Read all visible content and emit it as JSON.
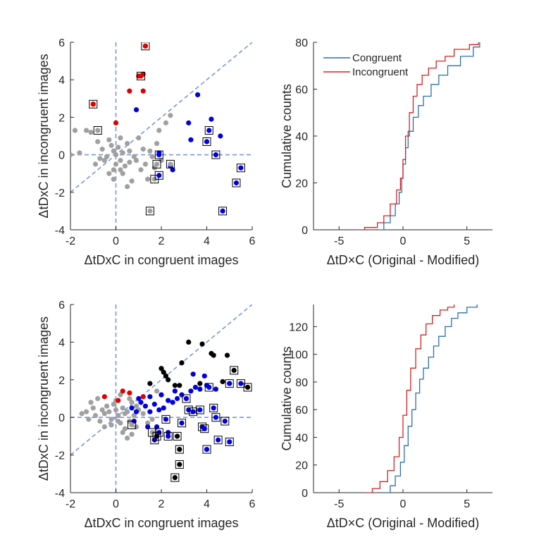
{
  "chart_data": [
    {
      "type": "scatter",
      "xlabel": "ΔtDxC in congruent images",
      "ylabel": "ΔtDxC in incongruent images",
      "xlim": [
        -2,
        6
      ],
      "ylim": [
        -4,
        6
      ],
      "xticks": [
        -2,
        0,
        2,
        4,
        6
      ],
      "yticks": [
        -4,
        -2,
        0,
        2,
        4,
        6
      ],
      "reference_lines": [
        "x = 0",
        "y = 0",
        "y = x"
      ],
      "colors": {
        "gray": "#a0a0a0",
        "blue": "#0000e0",
        "red": "#e00000",
        "black": "#000000",
        "guide": "#7a96d2"
      },
      "series": [
        {
          "color": "gray",
          "points": [
            [
              -2,
              0
            ],
            [
              -1.8,
              1.3
            ],
            [
              -1.3,
              1.3
            ],
            [
              -1.1,
              1.2
            ],
            [
              -0.8,
              0.7
            ],
            [
              -0.6,
              0.3
            ],
            [
              -0.4,
              -0.1
            ],
            [
              -0.2,
              0.5
            ],
            [
              -0.1,
              0.2
            ],
            [
              0,
              0
            ],
            [
              0.1,
              0.4
            ],
            [
              0.2,
              -0.3
            ],
            [
              0.3,
              0.1
            ],
            [
              0.5,
              0.6
            ],
            [
              0.6,
              -0.4
            ],
            [
              0.8,
              -0.1
            ],
            [
              1,
              0.9
            ],
            [
              1.2,
              0.3
            ],
            [
              1.3,
              -0.5
            ],
            [
              1.5,
              0.2
            ],
            [
              1.7,
              -0.7
            ],
            [
              1.9,
              1.3
            ],
            [
              2.2,
              1.7
            ],
            [
              2.4,
              2.1
            ],
            [
              -0.5,
              -0.3
            ],
            [
              0.4,
              -0.6
            ],
            [
              0.7,
              -1.4
            ],
            [
              1.4,
              -1.3
            ],
            [
              0.2,
              0.9
            ],
            [
              -0.3,
              0.8
            ],
            [
              -0.7,
              -0.2
            ],
            [
              0.9,
              -0.3
            ],
            [
              1.6,
              -0.1
            ],
            [
              2,
              -0.3
            ],
            [
              -0.1,
              -0.8
            ],
            [
              0.3,
              -1.0
            ],
            [
              0.5,
              -1.7
            ],
            [
              1.1,
              -0.8
            ],
            [
              -1.6,
              0.1
            ],
            [
              -0.9,
              -0.5
            ],
            [
              0.6,
              0.2
            ],
            [
              1.8,
              0.6
            ],
            [
              0,
              -0.5
            ],
            [
              0.2,
              -0.8
            ],
            [
              -0.3,
              -1.0
            ],
            [
              -0.1,
              -1.3
            ]
          ]
        },
        {
          "color": "blue",
          "points": [
            [
              0.9,
              2.4
            ],
            [
              3.2,
              1.7
            ],
            [
              3.3,
              0.8
            ],
            [
              3.6,
              3.2
            ],
            [
              4.2,
              1.9
            ],
            [
              4.6,
              1.0
            ],
            [
              2.4,
              -0.6
            ],
            [
              2.5,
              -0.8
            ],
            [
              1.9,
              0.1
            ]
          ]
        },
        {
          "color": "red",
          "points": [
            [
              -1.0,
              2.7
            ],
            [
              0,
              1.7
            ],
            [
              0.6,
              3.4
            ],
            [
              1.0,
              4.2
            ],
            [
              1.2,
              4.3
            ],
            [
              1.2,
              3.4
            ],
            [
              1.3,
              5.8
            ]
          ]
        },
        {
          "color": "gray",
          "boxed": true,
          "points": [
            [
              -0.8,
              1.3
            ],
            [
              1.8,
              -0.5
            ],
            [
              2.4,
              -0.5
            ],
            [
              1.7,
              -1.3
            ],
            [
              1.5,
              -3.0
            ]
          ]
        },
        {
          "color": "blue",
          "boxed": true,
          "points": [
            [
              1.9,
              0
            ],
            [
              1.9,
              -1.1
            ],
            [
              4.1,
              1.3
            ],
            [
              4.0,
              0.7
            ],
            [
              4.4,
              0
            ],
            [
              5.3,
              -1.5
            ],
            [
              5.5,
              -0.7
            ],
            [
              4.7,
              -3.0
            ]
          ]
        },
        {
          "color": "red",
          "boxed": true,
          "points": [
            [
              -1.0,
              2.7
            ],
            [
              1.1,
              4.2
            ],
            [
              1.3,
              5.8
            ]
          ]
        }
      ]
    },
    {
      "type": "line",
      "xlabel": "ΔtD×C (Original - Modified)",
      "ylabel": "Cumulative counts",
      "xlim": [
        -7,
        7
      ],
      "ylim": [
        0,
        80
      ],
      "xticks": [
        -5,
        0,
        5
      ],
      "yticks": [
        0,
        20,
        40,
        60,
        80
      ],
      "legend": "top-left",
      "colors": {
        "Congruent": "#2a6fb0",
        "Incongruent": "#d62020"
      },
      "series": [
        {
          "name": "Congruent",
          "x": [
            -1.9,
            -1.5,
            -1.0,
            -0.6,
            -0.3,
            -0.1,
            0,
            0.2,
            0.4,
            0.8,
            1.2,
            1.6,
            2.2,
            2.8,
            3.5,
            4.5,
            5.5,
            6.0
          ],
          "y": [
            0,
            3,
            6,
            11,
            16,
            22,
            28,
            35,
            42,
            48,
            53,
            57,
            62,
            66,
            70,
            74,
            78,
            80
          ]
        },
        {
          "name": "Incongruent",
          "x": [
            -4.1,
            -3.0,
            -2.0,
            -1.5,
            -1.0,
            -0.5,
            -0.2,
            0,
            0.2,
            0.5,
            0.8,
            1.1,
            1.5,
            2.0,
            2.6,
            3.3,
            4.0,
            5.2,
            5.9
          ],
          "y": [
            0,
            1,
            3,
            6,
            11,
            17,
            22,
            30,
            40,
            50,
            57,
            62,
            66,
            69,
            72,
            74,
            77,
            79,
            80
          ]
        }
      ]
    },
    {
      "type": "scatter",
      "xlabel": "ΔtDxC in congruent images",
      "ylabel": "ΔtDxC in incongruent images",
      "xlim": [
        -2,
        6
      ],
      "ylim": [
        -4,
        6
      ],
      "xticks": [
        -2,
        0,
        2,
        4,
        6
      ],
      "yticks": [
        -4,
        -2,
        0,
        2,
        4,
        6
      ],
      "reference_lines": [
        "x = 0",
        "y = 0",
        "y = x"
      ],
      "colors": {
        "gray": "#a0a0a0",
        "blue": "#0000e0",
        "red": "#e00000",
        "black": "#000000",
        "guide": "#7a96d2"
      },
      "series": [
        {
          "color": "gray",
          "points": [
            [
              -1.5,
              0.2
            ],
            [
              -1.3,
              0.3
            ],
            [
              -1.1,
              0.8
            ],
            [
              -1.0,
              0.5
            ],
            [
              -0.9,
              0.1
            ],
            [
              -0.7,
              -0.2
            ],
            [
              -0.6,
              0.4
            ],
            [
              -0.5,
              0.2
            ],
            [
              -0.4,
              0.6
            ],
            [
              -0.3,
              0.3
            ],
            [
              -0.2,
              -0.1
            ],
            [
              -0.1,
              0.7
            ],
            [
              0,
              0.4
            ],
            [
              0.1,
              0.1
            ],
            [
              0.2,
              -0.3
            ],
            [
              0.3,
              0.5
            ],
            [
              0.4,
              -0.6
            ],
            [
              0.5,
              0.3
            ],
            [
              0.6,
              -0.2
            ],
            [
              0.7,
              0.8
            ],
            [
              0.8,
              0.1
            ],
            [
              0.9,
              -0.5
            ],
            [
              1.0,
              0.4
            ],
            [
              1.2,
              0.2
            ],
            [
              1.4,
              -0.3
            ],
            [
              -0.8,
              1.0
            ],
            [
              0.2,
              1.2
            ],
            [
              0.5,
              -1.1
            ],
            [
              0.3,
              -0.8
            ],
            [
              -0.2,
              -0.4
            ],
            [
              0,
              0.9
            ],
            [
              0.6,
              1.0
            ],
            [
              -0.5,
              -0.5
            ],
            [
              0.4,
              0.2
            ],
            [
              0.9,
              0.6
            ],
            [
              0.1,
              -0.2
            ],
            [
              1.6,
              -0.1
            ],
            [
              1.8,
              1.4
            ],
            [
              -1.2,
              -0.1
            ],
            [
              0.7,
              -0.9
            ]
          ]
        },
        {
          "color": "blue",
          "points": [
            [
              0.7,
              0.5
            ],
            [
              1.1,
              0.8
            ],
            [
              1.3,
              0.6
            ],
            [
              1.5,
              0.3
            ],
            [
              1.7,
              0.7
            ],
            [
              1.9,
              0.4
            ],
            [
              2.1,
              0.5
            ],
            [
              2.3,
              0.9
            ],
            [
              2.5,
              0.8
            ],
            [
              2.7,
              1.0
            ],
            [
              2.9,
              1.2
            ],
            [
              3.1,
              1.0
            ],
            [
              3.3,
              1.4
            ],
            [
              3.5,
              1.6
            ],
            [
              3.7,
              1.5
            ],
            [
              2.0,
              1.2
            ],
            [
              1.5,
              1.1
            ],
            [
              2.6,
              1.4
            ],
            [
              3.9,
              2.2
            ],
            [
              3.4,
              2.3
            ],
            [
              4.0,
              1.7
            ],
            [
              1.0,
              1.0
            ],
            [
              1.4,
              -0.5
            ],
            [
              0.9,
              0.3
            ],
            [
              4.4,
              1.5
            ],
            [
              5.0,
              1.8
            ],
            [
              0.8,
              -0.2
            ],
            [
              2.3,
              -0.8
            ],
            [
              1.8,
              -0.5
            ]
          ]
        },
        {
          "color": "red",
          "points": [
            [
              -0.5,
              1.1
            ],
            [
              0.3,
              1.4
            ],
            [
              0.6,
              1.3
            ],
            [
              1.2,
              1.1
            ],
            [
              0.1,
              0.9
            ]
          ]
        },
        {
          "color": "black",
          "points": [
            [
              1.5,
              1.8
            ],
            [
              2.0,
              2.6
            ],
            [
              2.1,
              2.4
            ],
            [
              2.2,
              2.2
            ],
            [
              2.3,
              2.0
            ],
            [
              2.6,
              1.7
            ],
            [
              2.8,
              1.7
            ],
            [
              2.9,
              2.9
            ],
            [
              3.2,
              4.0
            ],
            [
              3.7,
              1.8
            ],
            [
              3.8,
              3.9
            ],
            [
              4.2,
              3.4
            ],
            [
              4.3,
              3.3
            ],
            [
              4.7,
              1.9
            ],
            [
              4.9,
              3.3
            ]
          ]
        },
        {
          "color": "gray",
          "boxed": true,
          "points": [
            [
              0.7,
              -0.4
            ],
            [
              1.6,
              -0.8
            ]
          ]
        },
        {
          "color": "blue",
          "boxed": true,
          "points": [
            [
              1.7,
              -1.2
            ],
            [
              1.9,
              -0.8
            ],
            [
              2.2,
              -0.1
            ],
            [
              2.3,
              -1.0
            ],
            [
              2.9,
              -0.3
            ],
            [
              3.1,
              1.0
            ],
            [
              3.2,
              0.4
            ],
            [
              3.4,
              0.3
            ],
            [
              3.7,
              0.4
            ],
            [
              3.8,
              -0.5
            ],
            [
              3.9,
              -0.6
            ],
            [
              4.0,
              -1.7
            ],
            [
              4.1,
              1.6
            ],
            [
              4.3,
              0.5
            ],
            [
              4.4,
              0.0
            ],
            [
              4.5,
              -1.2
            ],
            [
              4.8,
              -0.2
            ],
            [
              5.0,
              1.8
            ],
            [
              5.0,
              -1.3
            ],
            [
              5.5,
              1.8
            ]
          ]
        },
        {
          "color": "black",
          "boxed": true,
          "points": [
            [
              2.7,
              -1.0
            ],
            [
              2.8,
              -1.7
            ],
            [
              2.8,
              -2.5
            ],
            [
              2.6,
              -3.2
            ],
            [
              5.2,
              2.5
            ],
            [
              5.8,
              1.6
            ],
            [
              1.8,
              -1.0
            ]
          ]
        }
      ]
    },
    {
      "type": "line",
      "xlabel": "ΔtD×C (Original - Modified)",
      "ylabel": "Cumulative counts",
      "xlim": [
        -7,
        7
      ],
      "ylim": [
        0,
        136
      ],
      "xticks": [
        -5,
        0,
        5
      ],
      "yticks": [
        0,
        20,
        40,
        60,
        80,
        100,
        120
      ],
      "colors": {
        "Congruent": "#2a6fb0",
        "Incongruent": "#d62020"
      },
      "series": [
        {
          "name": "Congruent",
          "x": [
            -1.6,
            -1.0,
            -0.6,
            -0.2,
            0.1,
            0.4,
            0.7,
            1.0,
            1.3,
            1.6,
            2.0,
            2.4,
            2.8,
            3.3,
            3.8,
            4.3,
            5.0,
            5.8
          ],
          "y": [
            0,
            5,
            12,
            22,
            34,
            48,
            60,
            72,
            82,
            90,
            98,
            106,
            113,
            120,
            126,
            130,
            134,
            136
          ]
        },
        {
          "name": "Incongruent",
          "x": [
            -3.0,
            -2.4,
            -1.8,
            -1.2,
            -0.7,
            -0.3,
            0,
            0.3,
            0.6,
            1.0,
            1.4,
            1.8,
            2.3,
            2.9,
            3.5,
            4.0
          ],
          "y": [
            0,
            3,
            8,
            16,
            26,
            40,
            56,
            74,
            90,
            104,
            114,
            122,
            128,
            132,
            134,
            136
          ]
        }
      ]
    }
  ]
}
